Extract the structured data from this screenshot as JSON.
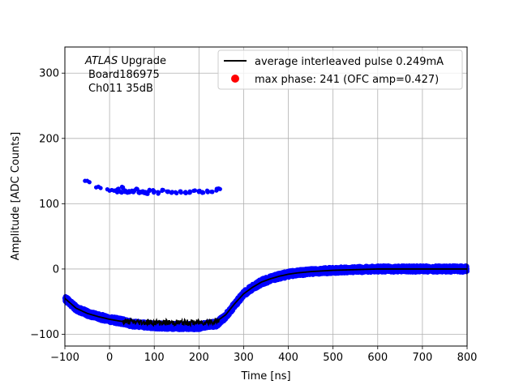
{
  "chart_data": {
    "type": "scatter",
    "xlabel": "Time [ns]",
    "ylabel": "Amplitude [ADC Counts]",
    "xlim": [
      -100,
      800
    ],
    "ylim": [
      -118,
      340
    ],
    "x_ticks": [
      -100,
      0,
      100,
      200,
      300,
      400,
      500,
      600,
      700,
      800
    ],
    "y_ticks": [
      -100,
      0,
      100,
      200,
      300
    ],
    "grid": true,
    "legend_position": "top-right",
    "annotation": {
      "line1_italic": "ATLAS",
      "line1_rest": " Upgrade",
      "line2": "Board186975",
      "line3": "Ch011 35dB"
    },
    "series": [
      {
        "name": "average interleaved pulse 0.249mA",
        "kind": "line",
        "color": "#000000",
        "x": [
          -100,
          -75,
          -50,
          -25,
          0,
          25,
          50,
          100,
          150,
          200,
          240,
          260,
          280,
          300,
          320,
          340,
          360,
          380,
          400,
          420,
          450,
          500,
          550,
          600,
          700,
          800
        ],
        "y": [
          -45,
          -60,
          -68,
          -73,
          -77,
          -80,
          -81,
          -82,
          -82,
          -82,
          -80,
          -70,
          -53,
          -38,
          -28,
          -20,
          -15,
          -11,
          -8,
          -6,
          -4,
          -2,
          -1,
          0,
          0,
          0
        ]
      },
      {
        "name": "max phase: 241 (OFC amp=0.427)",
        "kind": "marker",
        "color": "#ff0000",
        "x": [
          241
        ],
        "y": [
          -80
        ]
      },
      {
        "kind": "scatter",
        "color": "#0000ff",
        "x": [
          -100,
          -75,
          -50,
          -25,
          0,
          25,
          50,
          100,
          150,
          200,
          240,
          260,
          280,
          300,
          320,
          340,
          360,
          380,
          400,
          420,
          450,
          500,
          550,
          600,
          700,
          800
        ],
        "y": [
          -45,
          -60,
          -68,
          -73,
          -77,
          -80,
          -84,
          -87,
          -88,
          -88,
          -84,
          -72,
          -55,
          -38,
          -28,
          -20,
          -15,
          -11,
          -8,
          -6,
          -4,
          -2,
          -1,
          0,
          0,
          0
        ]
      },
      {
        "kind": "scatter",
        "color": "#0000ff",
        "x": [
          -55,
          -50,
          -45,
          -30,
          -25,
          -20,
          -5,
          0,
          5,
          10,
          15,
          20,
          25,
          30,
          35,
          40,
          45,
          50,
          55,
          60,
          65,
          70,
          75,
          80,
          85,
          90,
          100,
          110,
          120,
          130,
          140,
          150,
          160,
          170,
          180,
          190,
          200,
          210,
          220,
          230,
          240,
          245
        ],
        "y": [
          135,
          135,
          133,
          125,
          126,
          124,
          122,
          120,
          121,
          120,
          119,
          122,
          118,
          125,
          119,
          117,
          118,
          120,
          119,
          123,
          117,
          118,
          119,
          118,
          117,
          120,
          119,
          117,
          121,
          118,
          118,
          116,
          117,
          118,
          117,
          120,
          118,
          117,
          119,
          118,
          121,
          123
        ]
      }
    ]
  }
}
